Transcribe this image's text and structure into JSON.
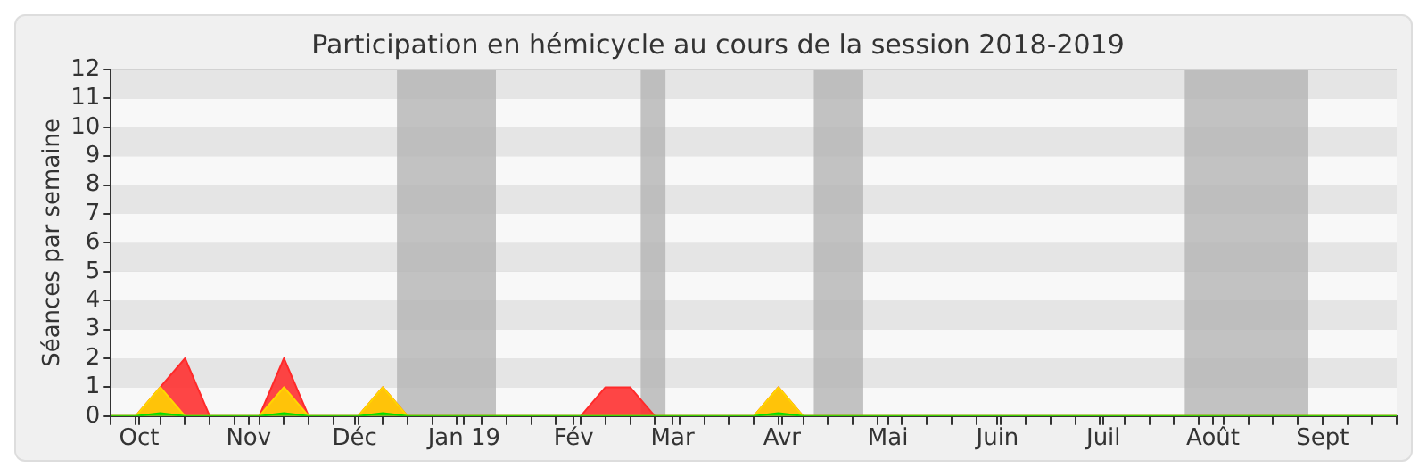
{
  "chart_data": {
    "type": "area",
    "title": "Participation en hémicycle au cours de la session 2018-2019",
    "ylabel": "Séances par semaine",
    "x": [
      "2018-09-23",
      "2018-09-30",
      "2018-10-07",
      "2018-10-14",
      "2018-10-21",
      "2018-10-28",
      "2018-11-04",
      "2018-11-11",
      "2018-11-18",
      "2018-11-25",
      "2018-12-02",
      "2018-12-09",
      "2018-12-16",
      "2018-12-23",
      "2018-12-30",
      "2019-01-06",
      "2019-01-13",
      "2019-01-20",
      "2019-01-27",
      "2019-02-03",
      "2019-02-10",
      "2019-02-17",
      "2019-02-24",
      "2019-03-03",
      "2019-03-10",
      "2019-03-17",
      "2019-03-24",
      "2019-03-31",
      "2019-04-07",
      "2019-04-14",
      "2019-04-21",
      "2019-04-28",
      "2019-05-05",
      "2019-05-12",
      "2019-05-19",
      "2019-05-26",
      "2019-06-02",
      "2019-06-09",
      "2019-06-16",
      "2019-06-23",
      "2019-06-30",
      "2019-07-07",
      "2019-07-14",
      "2019-07-21",
      "2019-07-28",
      "2019-08-04",
      "2019-08-11",
      "2019-08-18",
      "2019-08-25",
      "2019-09-01",
      "2019-09-08",
      "2019-09-15",
      "2019-09-22"
    ],
    "series": [
      {
        "color": "#ff2a2a",
        "values": [
          0,
          0,
          1,
          2,
          0,
          0,
          0,
          2,
          0,
          0,
          0,
          1,
          0,
          0,
          0,
          0,
          0,
          0,
          0,
          0,
          1,
          1,
          0,
          0,
          0,
          0,
          0,
          1,
          0,
          0,
          0,
          0,
          0,
          0,
          0,
          0,
          0,
          0,
          0,
          0,
          0,
          0,
          0,
          0,
          0,
          0,
          0,
          0,
          0,
          0,
          0,
          0,
          0
        ]
      },
      {
        "color": "#ffd700",
        "values": [
          0,
          0,
          1,
          0,
          0,
          0,
          0,
          1,
          0,
          0,
          0,
          1,
          0,
          0,
          0,
          0,
          0,
          0,
          0,
          0,
          0,
          0,
          0,
          0,
          0,
          0,
          0,
          1,
          0,
          0,
          0,
          0,
          0,
          0,
          0,
          0,
          0,
          0,
          0,
          0,
          0,
          0,
          0,
          0,
          0,
          0,
          0,
          0,
          0,
          0,
          0,
          0,
          0
        ]
      },
      {
        "color": "#00dd00",
        "values": [
          0,
          0,
          0.1,
          0,
          0,
          0,
          0,
          0.1,
          0,
          0,
          0,
          0.1,
          0,
          0,
          0,
          0,
          0,
          0,
          0,
          0,
          0,
          0,
          0,
          0,
          0,
          0,
          0,
          0.1,
          0,
          0,
          0,
          0,
          0,
          0,
          0,
          0,
          0,
          0,
          0,
          0,
          0,
          0,
          0,
          0,
          0,
          0,
          0,
          0,
          0,
          0,
          0,
          0,
          0
        ]
      }
    ],
    "xlim": [
      "2018-09-23",
      "2019-09-22"
    ],
    "xticks": [
      {
        "value": "2018-10-01",
        "label": "Oct"
      },
      {
        "value": "2018-11-01",
        "label": "Nov"
      },
      {
        "value": "2018-12-01",
        "label": "Déc"
      },
      {
        "value": "2019-01-01",
        "label": "Jan 19"
      },
      {
        "value": "2019-02-01",
        "label": "Fév"
      },
      {
        "value": "2019-03-01",
        "label": "Mar"
      },
      {
        "value": "2019-04-01",
        "label": "Avr"
      },
      {
        "value": "2019-05-01",
        "label": "Mai"
      },
      {
        "value": "2019-06-01",
        "label": "Juin"
      },
      {
        "value": "2019-07-01",
        "label": "Juil"
      },
      {
        "value": "2019-08-01",
        "label": "Août"
      },
      {
        "value": "2019-09-01",
        "label": "Sept"
      }
    ],
    "ylim": [
      0,
      12
    ],
    "yticks": [
      0,
      1,
      2,
      3,
      4,
      5,
      6,
      7,
      8,
      9,
      10,
      11,
      12
    ],
    "grid": "y",
    "bands": [
      {
        "axis": "x",
        "from": "2018-12-13",
        "to": "2019-01-10",
        "color": "#b4b4b4"
      },
      {
        "axis": "x",
        "from": "2019-02-20",
        "to": "2019-02-27",
        "color": "#b4b4b4"
      },
      {
        "axis": "x",
        "from": "2019-04-10",
        "to": "2019-04-24",
        "color": "#b4b4b4"
      },
      {
        "axis": "x",
        "from": "2019-07-24",
        "to": "2019-08-28",
        "color": "#b4b4b4"
      }
    ]
  }
}
